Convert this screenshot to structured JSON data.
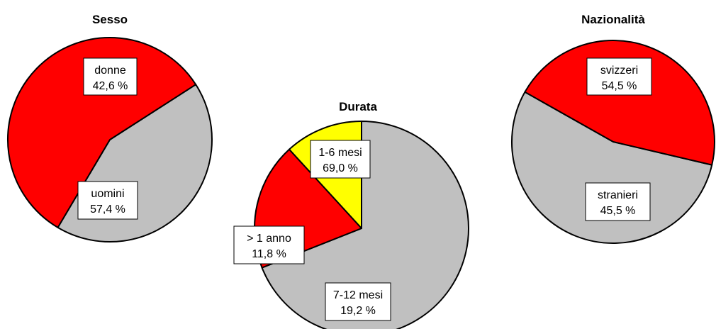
{
  "colors": {
    "grey": "#c0c0c0",
    "red": "#ff0000",
    "yellow": "#ffff00",
    "outline": "#000000"
  },
  "chart_data": [
    {
      "type": "pie",
      "title": "Sesso",
      "slices": [
        {
          "name": "donne",
          "value_label": "42,6 %",
          "value": 42.6,
          "color": "#c0c0c0"
        },
        {
          "name": "uomini",
          "value_label": "57,4 %",
          "value": 57.4,
          "color": "#ff0000"
        }
      ]
    },
    {
      "type": "pie",
      "title": "Durata",
      "slices": [
        {
          "name": "1-6 mesi",
          "value_label": "69,0 %",
          "value": 69.0,
          "color": "#c0c0c0"
        },
        {
          "name": "7-12 mesi",
          "value_label": "19,2 %",
          "value": 19.2,
          "color": "#ff0000"
        },
        {
          "name": "> 1 anno",
          "value_label": "11,8 %",
          "value": 11.8,
          "color": "#ffff00"
        }
      ]
    },
    {
      "type": "pie",
      "title": "Nazionalità",
      "slices": [
        {
          "name": "svizzeri",
          "value_label": "54,5 %",
          "value": 54.5,
          "color": "#c0c0c0"
        },
        {
          "name": "stranieri",
          "value_label": "45,5 %",
          "value": 45.5,
          "color": "#ff0000"
        }
      ]
    }
  ]
}
